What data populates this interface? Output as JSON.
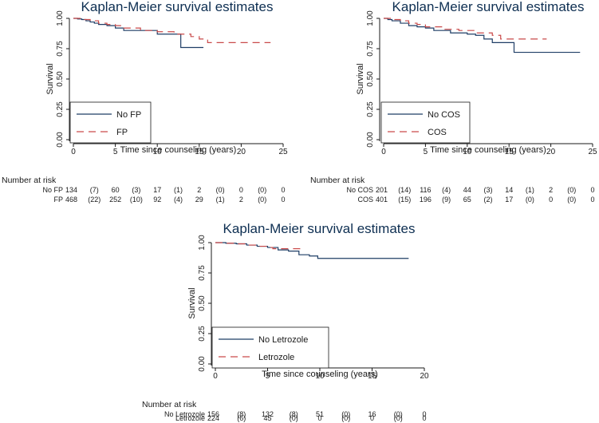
{
  "colors": {
    "navy": "#1f3e66",
    "red": "#c94a4a",
    "title": "#0e2f52"
  },
  "chart_data": [
    {
      "type": "line",
      "title": "Kaplan-Meier survival estimates",
      "xlabel": "Time since counseling (years)",
      "ylabel": "Survival",
      "xlim": [
        0,
        25
      ],
      "ylim": [
        0,
        1
      ],
      "x_ticks": [
        "0",
        "5",
        "10",
        "15",
        "20",
        "25"
      ],
      "y_ticks": [
        "0.00",
        "0.25",
        "0.50",
        "0.75",
        "1.00"
      ],
      "legend_position": "bottom-left",
      "series": [
        {
          "name": "No FP",
          "color": "#1f3e66",
          "dash": false,
          "points": [
            [
              0,
              1.0
            ],
            [
              0.5,
              0.995
            ],
            [
              1,
              0.99
            ],
            [
              1.5,
              0.98
            ],
            [
              2,
              0.97
            ],
            [
              2.5,
              0.96
            ],
            [
              3,
              0.95
            ],
            [
              4,
              0.94
            ],
            [
              5,
              0.92
            ],
            [
              6,
              0.9
            ],
            [
              8,
              0.9
            ],
            [
              10,
              0.87
            ],
            [
              12,
              0.87
            ],
            [
              12.8,
              0.76
            ],
            [
              15.5,
              0.76
            ]
          ]
        },
        {
          "name": "FP",
          "color": "#c94a4a",
          "dash": true,
          "points": [
            [
              0,
              1.0
            ],
            [
              1,
              0.99
            ],
            [
              2,
              0.98
            ],
            [
              3,
              0.96
            ],
            [
              4,
              0.95
            ],
            [
              5,
              0.94
            ],
            [
              6,
              0.92
            ],
            [
              8,
              0.9
            ],
            [
              10,
              0.89
            ],
            [
              12,
              0.87
            ],
            [
              14,
              0.85
            ],
            [
              15,
              0.83
            ],
            [
              16,
              0.8
            ],
            [
              23.5,
              0.8
            ]
          ]
        }
      ],
      "risk_table": {
        "header": "Number at risk",
        "times": [
          0,
          2.5,
          5,
          7.5,
          10,
          12.5,
          15,
          17.5,
          20,
          22.5,
          25
        ],
        "rows": [
          {
            "label": "No FP",
            "values": [
              "134",
              "(7)",
              "60",
              "(3)",
              "17",
              "(1)",
              "2",
              "(0)",
              "0",
              "(0)",
              "0"
            ]
          },
          {
            "label": "FP",
            "values": [
              "468",
              "(22)",
              "252",
              "(10)",
              "92",
              "(4)",
              "29",
              "(1)",
              "2",
              "(0)",
              "0"
            ]
          }
        ]
      }
    },
    {
      "type": "line",
      "title": "Kaplan-Meier survival estimates",
      "xlabel": "Time since counseling (years)",
      "ylabel": "Survival",
      "xlim": [
        0,
        25
      ],
      "ylim": [
        0,
        1
      ],
      "x_ticks": [
        "0",
        "5",
        "10",
        "15",
        "20",
        "25"
      ],
      "y_ticks": [
        "0.00",
        "0.25",
        "0.50",
        "0.75",
        "1.00"
      ],
      "legend_position": "bottom-left",
      "series": [
        {
          "name": "No COS",
          "color": "#1f3e66",
          "dash": false,
          "points": [
            [
              0,
              1.0
            ],
            [
              0.5,
              0.99
            ],
            [
              1,
              0.98
            ],
            [
              2,
              0.96
            ],
            [
              3,
              0.94
            ],
            [
              4,
              0.93
            ],
            [
              5,
              0.92
            ],
            [
              6,
              0.9
            ],
            [
              8,
              0.88
            ],
            [
              10,
              0.87
            ],
            [
              11,
              0.86
            ],
            [
              12,
              0.83
            ],
            [
              13,
              0.8
            ],
            [
              15,
              0.8
            ],
            [
              15.6,
              0.72
            ],
            [
              23.5,
              0.72
            ]
          ]
        },
        {
          "name": "COS",
          "color": "#c94a4a",
          "dash": true,
          "points": [
            [
              0,
              1.0
            ],
            [
              1,
              0.99
            ],
            [
              2,
              0.98
            ],
            [
              3,
              0.96
            ],
            [
              4,
              0.95
            ],
            [
              5,
              0.93
            ],
            [
              7,
              0.91
            ],
            [
              9,
              0.9
            ],
            [
              11,
              0.88
            ],
            [
              13,
              0.86
            ],
            [
              14,
              0.83
            ],
            [
              19.5,
              0.83
            ]
          ]
        }
      ],
      "risk_table": {
        "header": "Number at risk",
        "times": [
          0,
          2.5,
          5,
          7.5,
          10,
          12.5,
          15,
          17.5,
          20,
          22.5,
          25
        ],
        "rows": [
          {
            "label": "No COS",
            "values": [
              "201",
              "(14)",
              "116",
              "(4)",
              "44",
              "(3)",
              "14",
              "(1)",
              "2",
              "(0)",
              "0"
            ]
          },
          {
            "label": "COS",
            "values": [
              "401",
              "(15)",
              "196",
              "(9)",
              "65",
              "(2)",
              "17",
              "(0)",
              "0",
              "(0)",
              "0"
            ]
          }
        ]
      }
    },
    {
      "type": "line",
      "title": "Kaplan-Meier survival estimates",
      "xlabel": "Time since counseling (years)",
      "ylabel": "Survival",
      "xlim": [
        0,
        20
      ],
      "ylim": [
        0,
        1
      ],
      "x_ticks": [
        "0",
        "5",
        "10",
        "15",
        "20"
      ],
      "y_ticks": [
        "0.00",
        "0.25",
        "0.50",
        "0.75",
        "1.00"
      ],
      "legend_position": "bottom-left",
      "series": [
        {
          "name": "No Letrozole",
          "color": "#1f3e66",
          "dash": false,
          "points": [
            [
              0,
              1.0
            ],
            [
              1,
              0.995
            ],
            [
              2,
              0.99
            ],
            [
              3,
              0.98
            ],
            [
              4,
              0.97
            ],
            [
              5,
              0.96
            ],
            [
              6,
              0.94
            ],
            [
              7,
              0.93
            ],
            [
              8,
              0.9
            ],
            [
              9,
              0.89
            ],
            [
              9.8,
              0.87
            ],
            [
              18.5,
              0.87
            ]
          ]
        },
        {
          "name": "Letrozole",
          "color": "#c94a4a",
          "dash": true,
          "points": [
            [
              0,
              1.0
            ],
            [
              1,
              0.995
            ],
            [
              2,
              0.99
            ],
            [
              3,
              0.98
            ],
            [
              4,
              0.97
            ],
            [
              5,
              0.96
            ],
            [
              5.5,
              0.95
            ],
            [
              8.5,
              0.95
            ]
          ]
        }
      ],
      "risk_table": {
        "header": "Number at risk",
        "times": [
          0,
          2.5,
          5,
          7.5,
          10,
          12.5,
          15,
          17.5,
          20
        ],
        "rows": [
          {
            "label": "No Letrozole",
            "values": [
              "156",
              "(8)",
              "132",
              "(8)",
              "51",
              "(0)",
              "16",
              "(0)",
              "0"
            ]
          },
          {
            "label": "Letrozole",
            "values": [
              "224",
              "(6)",
              "45",
              "(0)",
              "0",
              "(0)",
              "0",
              "(0)",
              "0"
            ]
          }
        ]
      }
    }
  ]
}
